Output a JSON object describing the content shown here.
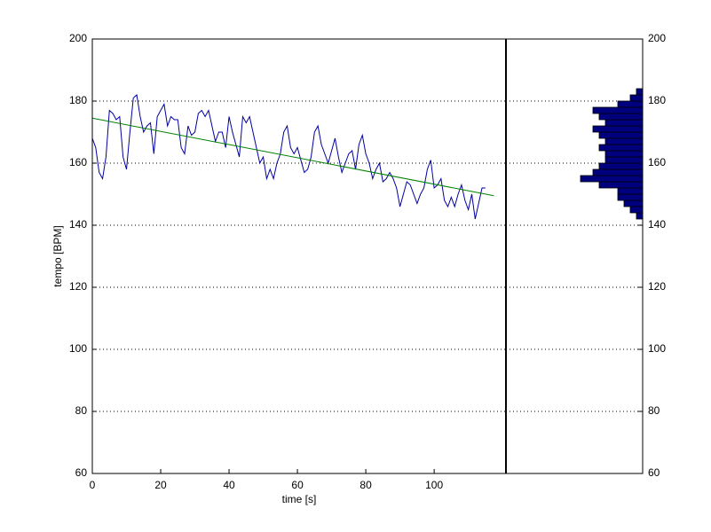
{
  "chart_data": [
    {
      "type": "line",
      "xlabel": "time [s]",
      "ylabel": "tempo [BPM]",
      "xlim": [
        0,
        121
      ],
      "ylim": [
        60,
        200
      ],
      "xticks": [
        0,
        20,
        40,
        60,
        80,
        100
      ],
      "yticks": [
        60,
        80,
        100,
        120,
        140,
        160,
        180,
        200
      ],
      "grid": true,
      "series": [
        {
          "name": "tempo",
          "color": "#0000a0",
          "x": [
            0,
            1,
            2,
            3,
            4,
            5,
            6,
            7,
            8,
            9,
            10,
            11,
            12,
            13,
            14,
            15,
            16,
            17,
            18,
            19,
            20,
            21,
            22,
            23,
            24,
            25,
            26,
            27,
            28,
            29,
            30,
            31,
            32,
            33,
            34,
            35,
            36,
            37,
            38,
            39,
            40,
            41,
            42,
            43,
            44,
            45,
            46,
            47,
            48,
            49,
            50,
            51,
            52,
            53,
            54,
            55,
            56,
            57,
            58,
            59,
            60,
            61,
            62,
            63,
            64,
            65,
            66,
            67,
            68,
            69,
            70,
            71,
            72,
            73,
            74,
            75,
            76,
            77,
            78,
            79,
            80,
            81,
            82,
            83,
            84,
            85,
            86,
            87,
            88,
            89,
            90,
            91,
            92,
            93,
            94,
            95,
            96,
            97,
            98,
            99,
            100,
            101,
            102,
            103,
            104,
            105,
            106,
            107,
            108,
            109,
            110,
            111,
            112,
            113,
            114,
            115
          ],
          "values": [
            168,
            165,
            157,
            155,
            162,
            177,
            176,
            174,
            175,
            162,
            158,
            170,
            181,
            182,
            175,
            170,
            172,
            173,
            163,
            175,
            177,
            179,
            172,
            175,
            174,
            174,
            165,
            163,
            172,
            169,
            170,
            176,
            177,
            175,
            177,
            172,
            167,
            170,
            170,
            165,
            175,
            170,
            166,
            162,
            175,
            173,
            175,
            170,
            165,
            160,
            162,
            155,
            158,
            155,
            160,
            163,
            170,
            172,
            165,
            163,
            165,
            161,
            157,
            158,
            162,
            170,
            172,
            166,
            163,
            160,
            164,
            168,
            162,
            157,
            160,
            163,
            164,
            158,
            166,
            169,
            163,
            160,
            155,
            158,
            160,
            154,
            155,
            157,
            155,
            152,
            146,
            150,
            154,
            153,
            150,
            147,
            150,
            152,
            158,
            161,
            152,
            153,
            155,
            148,
            146,
            149,
            146,
            150,
            153,
            148,
            145,
            150,
            142,
            147,
            152,
            152
          ]
        },
        {
          "name": "trend",
          "color": "#008000",
          "x": [
            0,
            117.5
          ],
          "values": [
            174.5,
            149.5
          ]
        }
      ]
    },
    {
      "type": "histogram",
      "orientation": "horizontal",
      "direction": "reverse",
      "xlim": [
        0,
        22
      ],
      "ylim": [
        60,
        200
      ],
      "yticks": [
        60,
        80,
        100,
        120,
        140,
        160,
        180,
        200
      ],
      "grid": true,
      "color": "#00007f",
      "bins": [
        142,
        144,
        146,
        148,
        150,
        152,
        154,
        156,
        158,
        160,
        162,
        164,
        166,
        168,
        170,
        172,
        174,
        176,
        178,
        180,
        182,
        184
      ],
      "values": [
        1,
        2,
        3,
        4,
        4,
        7,
        10,
        8,
        7,
        6,
        6,
        7,
        6,
        7,
        8,
        6,
        7,
        8,
        4,
        2,
        1
      ]
    }
  ]
}
